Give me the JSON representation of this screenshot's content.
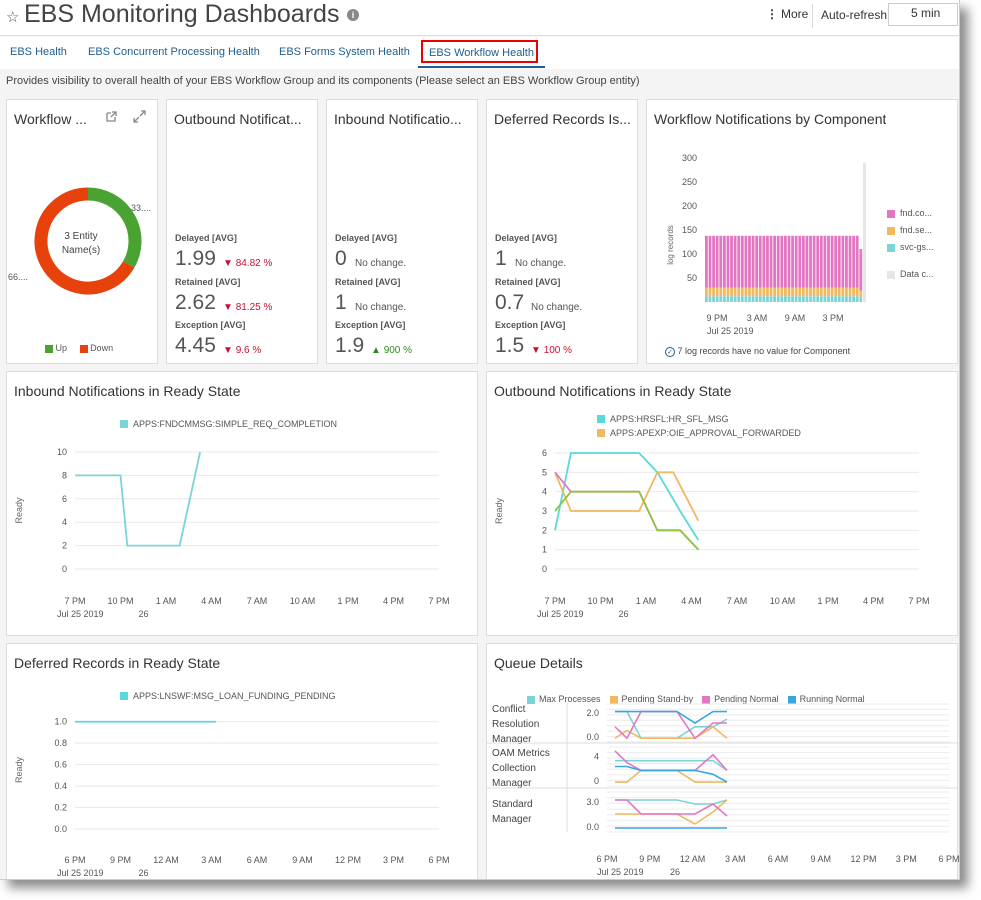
{
  "header": {
    "title": "EBS Monitoring Dashboards",
    "more_label": "More",
    "auto_refresh_label": "Auto-refresh",
    "auto_refresh_value": "5 min"
  },
  "tabs": [
    {
      "label": "EBS Health"
    },
    {
      "label": "EBS Concurrent Processing Health"
    },
    {
      "label": "EBS Forms System Health"
    },
    {
      "label": "EBS Workflow Health",
      "active": true
    }
  ],
  "description": "Provides visibility to overall health of your EBS Workflow Group and its components (Please select an EBS Workflow Group entity)",
  "colors": {
    "up": "#4aa232",
    "down": "#e8420c",
    "pink": "#e276c2",
    "orange": "#f0b861",
    "cyan": "#7ad4d8",
    "teal": "#5ad8db",
    "blue": "#3aa6e0"
  },
  "workflow_card": {
    "title": "Workflow ...",
    "center_text_1": "3 Entity",
    "center_text_2": "Name(s)",
    "label_up": "33....",
    "label_down": "66....",
    "legend_up": "Up",
    "legend_down": "Down",
    "up_fraction": 0.333
  },
  "outbound_card": {
    "title": "Outbound Notificat...",
    "metrics": [
      {
        "label": "Delayed [AVG]",
        "value": "1.99",
        "delta": "84.82 %",
        "dir": "down"
      },
      {
        "label": "Retained [AVG]",
        "value": "2.62",
        "delta": "81.25 %",
        "dir": "down"
      },
      {
        "label": "Exception [AVG]",
        "value": "4.45",
        "delta": "9.6 %",
        "dir": "down"
      }
    ]
  },
  "inbound_card": {
    "title": "Inbound Notificatio...",
    "metrics": [
      {
        "label": "Delayed [AVG]",
        "value": "0",
        "delta": "No change.",
        "dir": "none"
      },
      {
        "label": "Retained [AVG]",
        "value": "1",
        "delta": "No change.",
        "dir": "none"
      },
      {
        "label": "Exception [AVG]",
        "value": "1.9",
        "delta": "900 %",
        "dir": "up"
      }
    ]
  },
  "deferred_card": {
    "title": "Deferred Records Is...",
    "metrics": [
      {
        "label": "Delayed [AVG]",
        "value": "1",
        "delta": "No change.",
        "dir": "none"
      },
      {
        "label": "Retained [AVG]",
        "value": "0.7",
        "delta": "No change.",
        "dir": "none"
      },
      {
        "label": "Exception [AVG]",
        "value": "1.5",
        "delta": "100 %",
        "dir": "down"
      }
    ]
  },
  "component_card": {
    "title": "Workflow Notifications by Component",
    "ylabel": "log records",
    "yticks": [
      "300",
      "250",
      "200",
      "150",
      "100",
      "50"
    ],
    "xticks": [
      "9 PM",
      "3 AM",
      "9 AM",
      "3 PM"
    ],
    "date": "Jul 25 2019",
    "legend": [
      {
        "name": "fnd.co...",
        "color": "#e276c2"
      },
      {
        "name": "fnd.se...",
        "color": "#f0b861"
      },
      {
        "name": "svc-gs...",
        "color": "#7ad4d8"
      },
      {
        "name": "Data c...",
        "color": "#e6e6e6"
      }
    ],
    "footer": "7 log records have no value for Component"
  },
  "chart_data": [
    {
      "type": "bar",
      "title": "Workflow Notifications by Component",
      "ylabel": "log records",
      "ylim": [
        0,
        300
      ],
      "bar_count": 44,
      "series": [
        {
          "name": "svc-gs...",
          "value_per_bar": 12
        },
        {
          "name": "fnd.se...",
          "value_per_bar": 18
        },
        {
          "name": "fnd.co...",
          "value_per_bar": 108
        }
      ]
    },
    {
      "type": "line",
      "title": "Inbound Notifications in Ready State",
      "ylabel": "Ready",
      "ylim": [
        0,
        10
      ],
      "yticks": [
        "10",
        "8",
        "6",
        "4",
        "2",
        "0"
      ],
      "xticks": [
        "7 PM",
        "10 PM",
        "1 AM",
        "4 AM",
        "7 AM",
        "10 AM",
        "1 PM",
        "4 PM",
        "7 PM"
      ],
      "date1": "Jul 25 2019",
      "date2": "26",
      "series": [
        {
          "name": "APPS:FNDCMMSG:SIMPLE_REQ_COMPLETION",
          "color": "#7ad4d8",
          "x": [
            0,
            1,
            1.15,
            2.3,
            2.75
          ],
          "y": [
            8,
            8,
            2,
            2,
            10
          ]
        }
      ]
    },
    {
      "type": "line",
      "title": "Outbound Notifications in Ready State",
      "ylabel": "Ready",
      "ylim": [
        0,
        6
      ],
      "yticks": [
        "6",
        "5",
        "4",
        "3",
        "2",
        "1",
        "0"
      ],
      "xticks": [
        "7 PM",
        "10 PM",
        "1 AM",
        "4 AM",
        "7 AM",
        "10 AM",
        "1 PM",
        "4 PM",
        "7 PM"
      ],
      "date1": "Jul 25 2019",
      "date2": "26",
      "legend_visible": [
        "APPS:HRSFL:HR_SFL_MSG",
        "APPS:APEXP:OIE_APPROVAL_FORWARDED"
      ],
      "series": [
        {
          "name": "APPS:HRSFL:HR_SFL_MSG",
          "color": "#5ad8db",
          "x": [
            0,
            0.35,
            1.85,
            2.25,
            2.75,
            3.15
          ],
          "y": [
            2,
            6,
            6,
            5,
            3,
            1.5
          ]
        },
        {
          "name": "APPS:APEXP:OIE_APPROVAL_FORWARDED",
          "color": "#f0b861",
          "x": [
            0,
            0.35,
            1.85,
            2.25,
            2.6,
            3.15
          ],
          "y": [
            5,
            3,
            3,
            5,
            5,
            2.5
          ]
        },
        {
          "color": "#e276c2",
          "x": [
            0,
            0.35,
            1.85,
            2.25,
            2.75,
            3.15
          ],
          "y": [
            5,
            4,
            4,
            2,
            2,
            1
          ]
        },
        {
          "color": "#8dc63f",
          "x": [
            0,
            0.35,
            1.85,
            2.25,
            2.75,
            3.15
          ],
          "y": [
            3,
            4,
            4,
            2,
            2,
            1
          ]
        }
      ]
    },
    {
      "type": "line",
      "title": "Deferred Records in Ready State",
      "ylabel": "Ready",
      "ylim": [
        0,
        1.1
      ],
      "yticks": [
        "1.0",
        "0.8",
        "0.6",
        "0.4",
        "0.2",
        "0.0"
      ],
      "xticks": [
        "6 PM",
        "9 PM",
        "12 AM",
        "3 AM",
        "6 AM",
        "9 AM",
        "12 PM",
        "3 PM",
        "6 PM"
      ],
      "date1": "Jul 25 2019",
      "date2": "26",
      "series": [
        {
          "name": "APPS:LNSWF:MSG_LOAN_FUNDING_PENDING",
          "color": "#5ad8db",
          "x": [
            0,
            3.1
          ],
          "y": [
            1.0,
            1.0
          ]
        }
      ]
    }
  ],
  "queue_card": {
    "title": "Queue Details",
    "legend": [
      {
        "name": "Max Processes",
        "color": "#7ad4d8"
      },
      {
        "name": "Pending Stand-by",
        "color": "#f0b861"
      },
      {
        "name": "Pending Normal",
        "color": "#e276c2"
      },
      {
        "name": "Running Normal",
        "color": "#3aa6e0"
      }
    ],
    "rows": [
      {
        "label": "Conflict Resolution Manager",
        "yticks": [
          "2.0",
          "0.0"
        ]
      },
      {
        "label": "OAM Metrics Collection Manager",
        "yticks": [
          "4",
          "0"
        ]
      },
      {
        "label": "Standard Manager",
        "yticks": [
          "3.0",
          "0.0"
        ]
      }
    ],
    "xticks": [
      "6 PM",
      "9 PM",
      "12 AM",
      "3 AM",
      "6 AM",
      "9 AM",
      "12 PM",
      "3 PM",
      "6 PM"
    ],
    "date1": "Jul 25 2019",
    "date2": "26"
  }
}
